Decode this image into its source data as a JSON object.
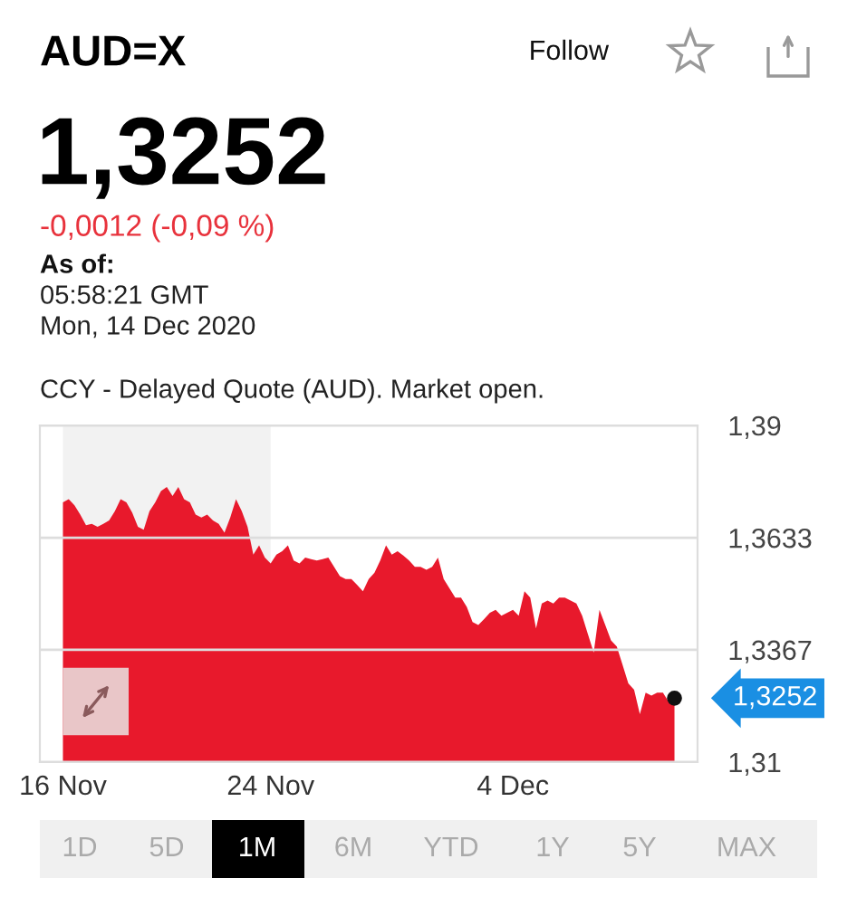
{
  "chart_data": {
    "type": "area",
    "title": "AUD=X",
    "subtitle": "1,3252",
    "categories": [
      "16 Nov",
      null,
      null,
      null,
      null,
      null,
      null,
      null,
      null,
      null,
      null,
      null,
      null,
      null,
      null,
      null,
      null,
      null,
      null,
      null,
      null,
      null,
      null,
      null,
      null,
      null,
      null,
      null,
      null,
      null,
      null,
      null,
      null,
      null,
      null,
      null,
      "24 Nov",
      null,
      null,
      null,
      null,
      null,
      null,
      null,
      null,
      null,
      null,
      null,
      null,
      null,
      null,
      null,
      null,
      null,
      null,
      null,
      null,
      null,
      null,
      null,
      null,
      null,
      null,
      null,
      null,
      null,
      null,
      null,
      null,
      null,
      null,
      null,
      null,
      null,
      null,
      null,
      null,
      null,
      "4 Dec",
      null,
      null,
      null,
      null,
      null,
      null,
      null,
      null,
      null,
      null,
      null,
      null,
      null,
      null,
      null,
      null,
      null,
      null,
      null,
      null,
      null,
      null,
      null,
      null,
      null,
      null,
      null,
      null
    ],
    "series": [
      {
        "color": "#e8192c",
        "values": [
          1.3717,
          1.3725,
          1.371,
          1.3688,
          1.3663,
          1.3666,
          1.3659,
          1.3666,
          1.3674,
          1.3696,
          1.3725,
          1.3717,
          1.3693,
          1.3659,
          1.3652,
          1.3696,
          1.3717,
          1.3744,
          1.3754,
          1.3732,
          1.3754,
          1.3725,
          1.3717,
          1.3688,
          1.3681,
          1.3688,
          1.3674,
          1.3666,
          1.3645,
          1.3681,
          1.3725,
          1.3696,
          1.3659,
          1.3593,
          1.3615,
          1.3586,
          1.3572,
          1.3593,
          1.3601,
          1.3615,
          1.3579,
          1.3572,
          1.3586,
          1.3582,
          1.3579,
          1.3582,
          1.3586,
          1.3564,
          1.3542,
          1.3535,
          1.3535,
          1.3521,
          1.3506,
          1.3535,
          1.355,
          1.3579,
          1.3615,
          1.3593,
          1.3601,
          1.3591,
          1.3579,
          1.3564,
          1.3564,
          1.3557,
          1.3564,
          1.3586,
          1.3535,
          1.3513,
          1.3491,
          1.3491,
          1.3469,
          1.3433,
          1.3426,
          1.344,
          1.3455,
          1.3462,
          1.3448,
          1.3455,
          1.3462,
          1.3448,
          1.3506,
          1.3491,
          1.3418,
          1.3477,
          1.3484,
          1.3477,
          1.3491,
          1.3491,
          1.3484,
          1.3477,
          1.3448,
          1.3404,
          1.336,
          1.3462,
          1.3426,
          1.3389,
          1.3375,
          1.3331,
          1.3287,
          1.3272,
          1.3214,
          1.3265,
          1.3258,
          1.3265,
          1.3265,
          1.3243,
          1.3252
        ]
      }
    ],
    "ylim": [
      1.31,
      1.39
    ],
    "yticks": [
      {
        "value": 1.31,
        "label": "1,31"
      },
      {
        "value": 1.3367,
        "label": "1,3367"
      },
      {
        "value": 1.3633,
        "label": "1,3633"
      },
      {
        "value": 1.39,
        "label": "1,39"
      }
    ],
    "grid": "y",
    "bands": [
      {
        "axis": "x",
        "from": "16 Nov",
        "to": "24 Nov",
        "color": "#f2f2f2"
      }
    ],
    "annotations": [
      "-0,0012 (-0,09 %)",
      "As of:",
      "05:58:21 GMT",
      "Mon, 14 Dec 2020",
      "CCY - Delayed Quote (AUD). Market open.",
      "Follow",
      "1D",
      "5D",
      "1M",
      "6M",
      "YTD",
      "1Y",
      "5Y",
      "MAX",
      "1,3252"
    ]
  }
}
